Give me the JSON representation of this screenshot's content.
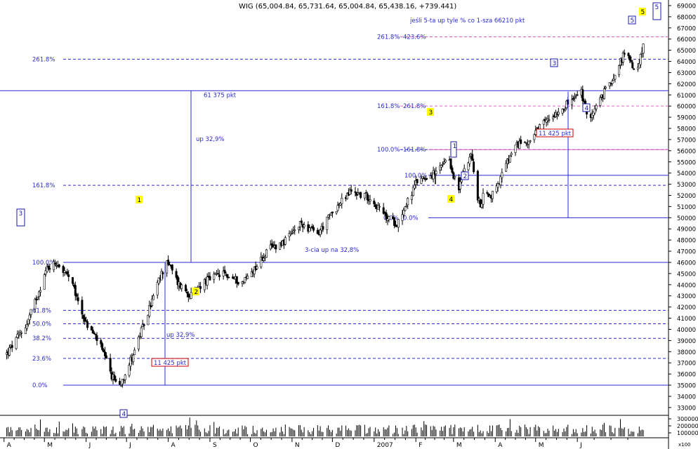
{
  "chart_data": {
    "type": "candlestick",
    "title": "WIG (65,004.84, 65,731.64, 65,004.84, 65,438.16, +739.441)",
    "y_unit": "pkt",
    "ylim": [
      32300,
      69500
    ],
    "y_ticks": [
      33000,
      34000,
      35000,
      36000,
      37000,
      38000,
      39000,
      40000,
      41000,
      42000,
      43000,
      44000,
      45000,
      46000,
      47000,
      48000,
      49000,
      50000,
      51000,
      52000,
      53000,
      54000,
      55000,
      56000,
      57000,
      58000,
      59000,
      60000,
      61000,
      62000,
      63000,
      64000,
      65000,
      66000,
      67000,
      68000,
      69000
    ],
    "y_tick_labels": [
      "33000",
      "34000",
      "35000",
      "36000",
      "37000",
      "38000",
      "39000",
      "40000",
      "41000",
      "42000",
      "43000",
      "44000",
      "45000",
      "46000",
      "47000",
      "48000",
      "49000",
      "50000",
      "51000",
      "52000",
      "53000",
      "54000",
      "55000",
      "56000",
      "57000",
      "58000",
      "59000",
      "60000",
      "61000",
      "62000",
      "63000",
      "64000",
      "65000",
      "66000",
      "67000",
      "68000",
      "69000"
    ],
    "x_period": "2006-04 .. 2007-06",
    "x_month_labels": [
      "A",
      "M",
      "J",
      "J",
      "A",
      "S",
      "O",
      "N",
      "D",
      "2007",
      "F",
      "M",
      "A",
      "M",
      "J"
    ],
    "volume_axis_labels": [
      "300000",
      "200000",
      "100000"
    ],
    "volume_multiplier": "x100",
    "series": {
      "anchors": [
        {
          "date": "2006-04-03",
          "value": 37800
        },
        {
          "date": "2006-04-18",
          "value": 40500
        },
        {
          "date": "2006-05-03",
          "value": 45500
        },
        {
          "date": "2006-05-10",
          "value": 46000
        },
        {
          "date": "2006-05-20",
          "value": 44500
        },
        {
          "date": "2006-06-01",
          "value": 40500
        },
        {
          "date": "2006-06-10",
          "value": 39000
        },
        {
          "date": "2006-06-20",
          "value": 35800
        },
        {
          "date": "2006-06-26",
          "value": 35000
        },
        {
          "date": "2006-07-05",
          "value": 37500
        },
        {
          "date": "2006-07-15",
          "value": 40800
        },
        {
          "date": "2006-07-24",
          "value": 44000
        },
        {
          "date": "2006-07-31",
          "value": 46200
        },
        {
          "date": "2006-08-08",
          "value": 44200
        },
        {
          "date": "2006-08-18",
          "value": 43000
        },
        {
          "date": "2006-08-28",
          "value": 44300
        },
        {
          "date": "2006-09-10",
          "value": 45000
        },
        {
          "date": "2006-09-25",
          "value": 44200
        },
        {
          "date": "2006-10-05",
          "value": 45600
        },
        {
          "date": "2006-10-15",
          "value": 47200
        },
        {
          "date": "2006-10-28",
          "value": 48000
        },
        {
          "date": "2006-11-08",
          "value": 49500
        },
        {
          "date": "2006-11-20",
          "value": 48500
        },
        {
          "date": "2006-12-01",
          "value": 50500
        },
        {
          "date": "2006-12-15",
          "value": 52400
        },
        {
          "date": "2006-12-29",
          "value": 51800
        },
        {
          "date": "2007-01-10",
          "value": 50000
        },
        {
          "date": "2007-01-18",
          "value": 49500
        },
        {
          "date": "2007-01-26",
          "value": 51500
        },
        {
          "date": "2007-02-03",
          "value": 53500
        },
        {
          "date": "2007-02-15",
          "value": 53900
        },
        {
          "date": "2007-02-25",
          "value": 55200
        },
        {
          "date": "2007-03-01",
          "value": 53800
        },
        {
          "date": "2007-03-05",
          "value": 52500
        },
        {
          "date": "2007-03-09",
          "value": 54500
        },
        {
          "date": "2007-03-14",
          "value": 55800
        },
        {
          "date": "2007-03-18",
          "value": 52200
        },
        {
          "date": "2007-03-21",
          "value": 51000
        },
        {
          "date": "2007-03-25",
          "value": 52800
        },
        {
          "date": "2007-03-28",
          "value": 51800
        },
        {
          "date": "2007-04-03",
          "value": 53000
        },
        {
          "date": "2007-04-10",
          "value": 55000
        },
        {
          "date": "2007-04-18",
          "value": 56600
        },
        {
          "date": "2007-04-28",
          "value": 57000
        },
        {
          "date": "2007-05-05",
          "value": 58200
        },
        {
          "date": "2007-05-12",
          "value": 59000
        },
        {
          "date": "2007-05-20",
          "value": 59800
        },
        {
          "date": "2007-05-28",
          "value": 60500
        },
        {
          "date": "2007-06-04",
          "value": 61300
        },
        {
          "date": "2007-06-08",
          "value": 59000
        },
        {
          "date": "2007-06-13",
          "value": 59500
        },
        {
          "date": "2007-06-20",
          "value": 61000
        },
        {
          "date": "2007-06-27",
          "value": 62500
        },
        {
          "date": "2007-07-05",
          "value": 64500
        },
        {
          "date": "2007-07-10",
          "value": 64200
        },
        {
          "date": "2007-07-13",
          "value": 63000
        },
        {
          "date": "2007-07-17",
          "value": 64000
        },
        {
          "date": "2007-07-20",
          "value": 65400
        }
      ]
    },
    "fib_levels": [
      {
        "label": "261.8%",
        "value": 64200
      },
      {
        "label": "161.8%",
        "value": 52900
      },
      {
        "label": "100.0%",
        "value": 46000
      },
      {
        "label": "61.8%",
        "value": 41700
      },
      {
        "label": "50.0%",
        "value": 40500
      },
      {
        "label": "38.2%",
        "value": 39200
      },
      {
        "label": "23.6%",
        "value": 37400
      },
      {
        "label": "0.0%",
        "value": 35000
      }
    ],
    "fib_levels_second": [
      {
        "label": "261.8%",
        "value": 66200,
        "label2": "423.6%"
      },
      {
        "label": "161.8%",
        "value": 60000,
        "label2": "261.8%"
      },
      {
        "label": "100.0%",
        "value": 56100,
        "label2": "161.8%"
      },
      {
        "label": "",
        "value": 53800,
        "label2": "100.0%"
      },
      {
        "label": "0.0%",
        "value": 50000,
        "label2": "0.0%"
      }
    ],
    "annotations": [
      "jeśli 5-ta up tyle % co 1-sza 66210 pkt",
      "61 375 pkt",
      "up 32,9%",
      "up 32,9%",
      "3-cia up na 32,8%",
      "11 425 pkt",
      "11 425 pkt"
    ],
    "wave_labels_yellow": [
      "1",
      "2",
      "3",
      "4",
      "5"
    ],
    "wave_labels_blue": [
      "3",
      "4",
      "1",
      "2",
      "3",
      "4",
      "5",
      "5"
    ],
    "colors": {
      "line": "#1a1aa8",
      "candle": "#000000",
      "fib_line": "#2a2ad0",
      "pink": "#e060c0",
      "yellow": "#ffff00",
      "red_box": "#cc0000"
    }
  }
}
